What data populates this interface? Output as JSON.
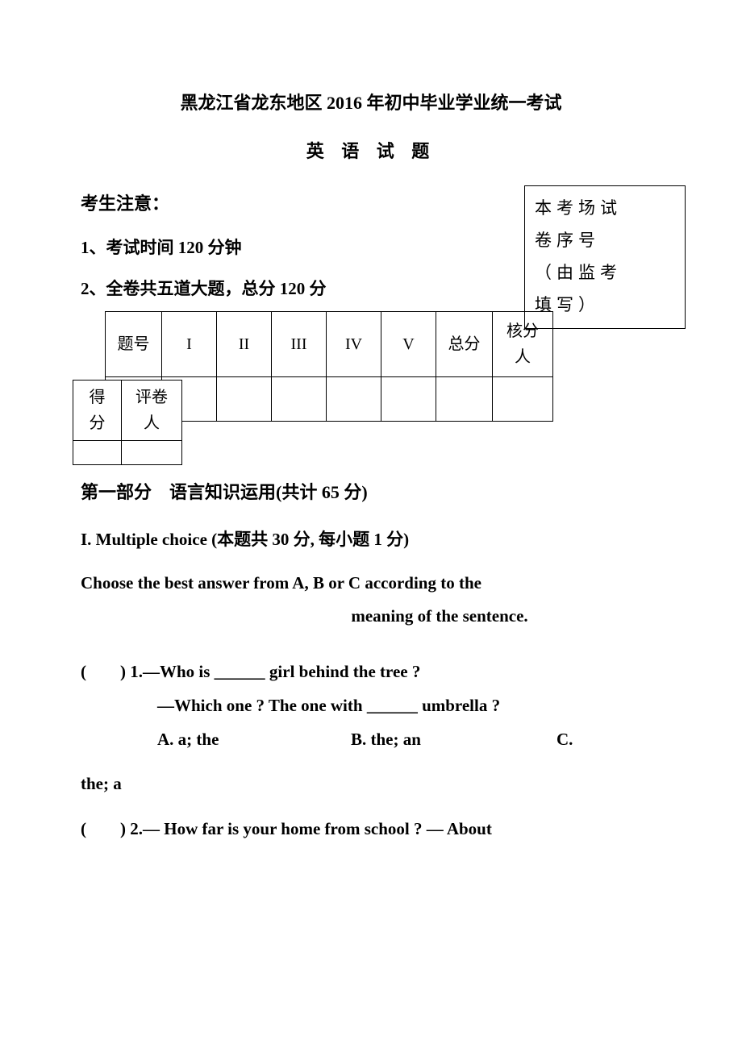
{
  "title_main": "黑龙江省龙东地区 2016 年初中毕业学业统一考试",
  "title_sub": "英 语 试 题",
  "notice_title": "考生注意：",
  "notice_1": "1、考试时间 120 分钟",
  "notice_2": "2、全卷共五道大题，总分 120 分",
  "seq_box_line1": "本考场试",
  "seq_box_line2": "卷序号",
  "seq_box_line3": "（由监考",
  "seq_box_line4": "填写）",
  "main_table": {
    "header_label": "题号",
    "col1": "I",
    "col2": "II",
    "col3": "III",
    "col4": "IV",
    "col5": "V",
    "col_total": "总分",
    "col_kefen_l1": "核分",
    "col_kefen_l2": "人",
    "row2_label": "得分"
  },
  "overlay": {
    "col1_l1": "得",
    "col1_l2": "分",
    "col2_l1": "评卷",
    "col2_l2": "人"
  },
  "part_title": "第一部分　语言知识运用(共计 65 分)",
  "section_i_title_en": "I. Multiple choice ",
  "section_i_title_cn": "(本题共 30 分, 每小题 1 分)",
  "instruction_l1": "Choose the best answer from A, B or C according to the",
  "instruction_l2": "meaning of the sentence.",
  "q1_line1": "(　　) 1.—Who is ______ girl behind the tree ?",
  "q1_line2": "—Which one ? The one with ______ umbrella ?",
  "q1_optA": "A. a; the",
  "q1_optB": "B. the; an",
  "q1_optC": "C.",
  "q1_cont": "the; a",
  "q2_line1": "(　　) 2.— How far is your home from school ? — About"
}
